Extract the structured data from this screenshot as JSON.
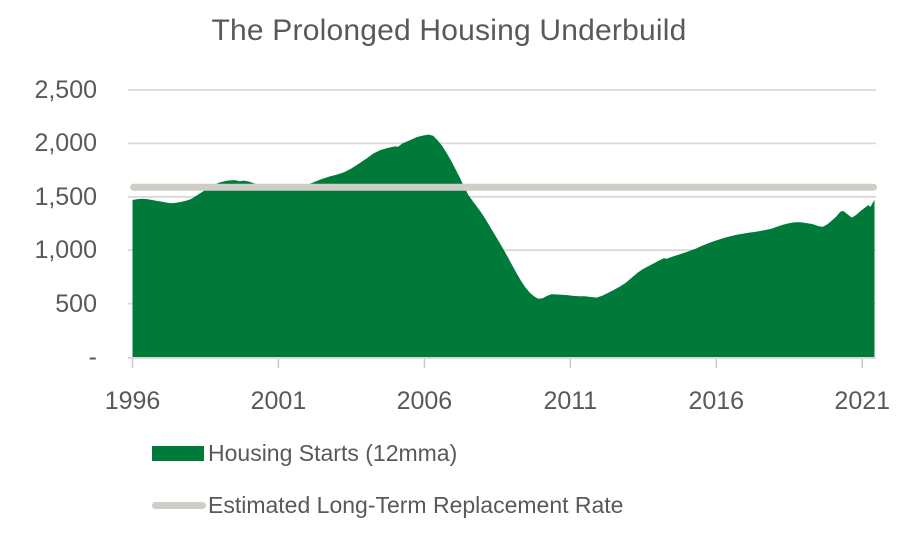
{
  "title": "The Prolonged Housing Underbuild",
  "colors": {
    "housing_green": "#007A38",
    "replacement_gray": "#D0CDC8",
    "gridline": "#D9D9D9",
    "axis_line": "#D9D9D9",
    "tick_mark": "#C9C9C9",
    "text": "#595959"
  },
  "legend": [
    {
      "label": "Housing Starts (12mma)",
      "swatch": "area"
    },
    {
      "label": "Estimated Long-Term Replacement Rate",
      "swatch": "line"
    }
  ],
  "chart_data": {
    "type": "area",
    "title": "The Prolonged Housing Underbuild",
    "xlabel": "",
    "ylabel": "",
    "x_range": [
      1996,
      2021.42
    ],
    "ylim": [
      0,
      2500
    ],
    "grid": "horizontal",
    "legend_position": "bottom-left",
    "y_ticks": [
      {
        "value": 0,
        "label": "-"
      },
      {
        "value": 500,
        "label": "500"
      },
      {
        "value": 1000,
        "label": "1,000"
      },
      {
        "value": 1500,
        "label": "1,500"
      },
      {
        "value": 2000,
        "label": "2,000"
      },
      {
        "value": 2500,
        "label": "2,500"
      }
    ],
    "x_ticks": [
      1996,
      2001,
      2006,
      2011,
      2016,
      2021
    ],
    "replacement_rate": 1590,
    "series": [
      {
        "name": "Housing Starts (12mma)",
        "points": [
          [
            1996.0,
            1470
          ],
          [
            1996.17,
            1478
          ],
          [
            1996.33,
            1482
          ],
          [
            1996.5,
            1478
          ],
          [
            1996.67,
            1470
          ],
          [
            1996.83,
            1462
          ],
          [
            1997.0,
            1455
          ],
          [
            1997.17,
            1446
          ],
          [
            1997.33,
            1440
          ],
          [
            1997.5,
            1444
          ],
          [
            1997.67,
            1452
          ],
          [
            1997.83,
            1463
          ],
          [
            1998.0,
            1478
          ],
          [
            1998.25,
            1522
          ],
          [
            1998.5,
            1565
          ],
          [
            1998.75,
            1608
          ],
          [
            1999.0,
            1636
          ],
          [
            1999.25,
            1652
          ],
          [
            1999.5,
            1656
          ],
          [
            1999.67,
            1646
          ],
          [
            1999.83,
            1652
          ],
          [
            2000.0,
            1640
          ],
          [
            2000.25,
            1618
          ],
          [
            2000.5,
            1600
          ],
          [
            2000.75,
            1590
          ],
          [
            2001.0,
            1584
          ],
          [
            2001.25,
            1584
          ],
          [
            2001.5,
            1590
          ],
          [
            2001.75,
            1600
          ],
          [
            2002.0,
            1612
          ],
          [
            2002.25,
            1640
          ],
          [
            2002.5,
            1668
          ],
          [
            2002.75,
            1690
          ],
          [
            2003.0,
            1708
          ],
          [
            2003.25,
            1730
          ],
          [
            2003.5,
            1765
          ],
          [
            2003.75,
            1810
          ],
          [
            2004.0,
            1855
          ],
          [
            2004.25,
            1905
          ],
          [
            2004.5,
            1938
          ],
          [
            2004.75,
            1958
          ],
          [
            2005.0,
            1972
          ],
          [
            2005.1,
            1968
          ],
          [
            2005.25,
            2000
          ],
          [
            2005.5,
            2030
          ],
          [
            2005.75,
            2060
          ],
          [
            2006.0,
            2076
          ],
          [
            2006.15,
            2082
          ],
          [
            2006.3,
            2072
          ],
          [
            2006.45,
            2030
          ],
          [
            2006.6,
            1980
          ],
          [
            2006.75,
            1915
          ],
          [
            2006.9,
            1845
          ],
          [
            2007.05,
            1768
          ],
          [
            2007.2,
            1688
          ],
          [
            2007.35,
            1600
          ],
          [
            2007.5,
            1520
          ],
          [
            2007.65,
            1462
          ],
          [
            2007.8,
            1408
          ],
          [
            2007.95,
            1352
          ],
          [
            2008.1,
            1288
          ],
          [
            2008.25,
            1218
          ],
          [
            2008.4,
            1150
          ],
          [
            2008.55,
            1082
          ],
          [
            2008.7,
            1012
          ],
          [
            2008.85,
            938
          ],
          [
            2009.0,
            862
          ],
          [
            2009.15,
            788
          ],
          [
            2009.3,
            718
          ],
          [
            2009.45,
            655
          ],
          [
            2009.6,
            605
          ],
          [
            2009.75,
            568
          ],
          [
            2009.9,
            546
          ],
          [
            2010.05,
            550
          ],
          [
            2010.2,
            572
          ],
          [
            2010.35,
            588
          ],
          [
            2010.5,
            586
          ],
          [
            2010.7,
            583
          ],
          [
            2010.9,
            580
          ],
          [
            2011.1,
            572
          ],
          [
            2011.3,
            568
          ],
          [
            2011.5,
            569
          ],
          [
            2011.7,
            562
          ],
          [
            2011.9,
            556
          ],
          [
            2012.1,
            575
          ],
          [
            2012.3,
            602
          ],
          [
            2012.5,
            630
          ],
          [
            2012.7,
            660
          ],
          [
            2012.9,
            695
          ],
          [
            2013.1,
            742
          ],
          [
            2013.3,
            788
          ],
          [
            2013.5,
            825
          ],
          [
            2013.7,
            855
          ],
          [
            2013.9,
            882
          ],
          [
            2014.0,
            898
          ],
          [
            2014.2,
            925
          ],
          [
            2014.3,
            920
          ],
          [
            2014.5,
            940
          ],
          [
            2014.7,
            958
          ],
          [
            2014.9,
            975
          ],
          [
            2015.1,
            995
          ],
          [
            2015.3,
            1015
          ],
          [
            2015.5,
            1040
          ],
          [
            2015.7,
            1062
          ],
          [
            2015.9,
            1082
          ],
          [
            2016.1,
            1100
          ],
          [
            2016.3,
            1118
          ],
          [
            2016.5,
            1132
          ],
          [
            2016.7,
            1144
          ],
          [
            2016.9,
            1154
          ],
          [
            2017.1,
            1164
          ],
          [
            2017.3,
            1170
          ],
          [
            2017.5,
            1180
          ],
          [
            2017.7,
            1190
          ],
          [
            2017.9,
            1202
          ],
          [
            2018.1,
            1222
          ],
          [
            2018.3,
            1240
          ],
          [
            2018.5,
            1254
          ],
          [
            2018.7,
            1262
          ],
          [
            2018.9,
            1262
          ],
          [
            2019.1,
            1254
          ],
          [
            2019.3,
            1244
          ],
          [
            2019.5,
            1226
          ],
          [
            2019.65,
            1218
          ],
          [
            2019.8,
            1242
          ],
          [
            2019.95,
            1275
          ],
          [
            2020.1,
            1312
          ],
          [
            2020.25,
            1360
          ],
          [
            2020.35,
            1368
          ],
          [
            2020.5,
            1335
          ],
          [
            2020.65,
            1305
          ],
          [
            2020.8,
            1332
          ],
          [
            2020.95,
            1370
          ],
          [
            2021.1,
            1400
          ],
          [
            2021.2,
            1422
          ],
          [
            2021.28,
            1405
          ],
          [
            2021.42,
            1472
          ]
        ]
      }
    ]
  }
}
